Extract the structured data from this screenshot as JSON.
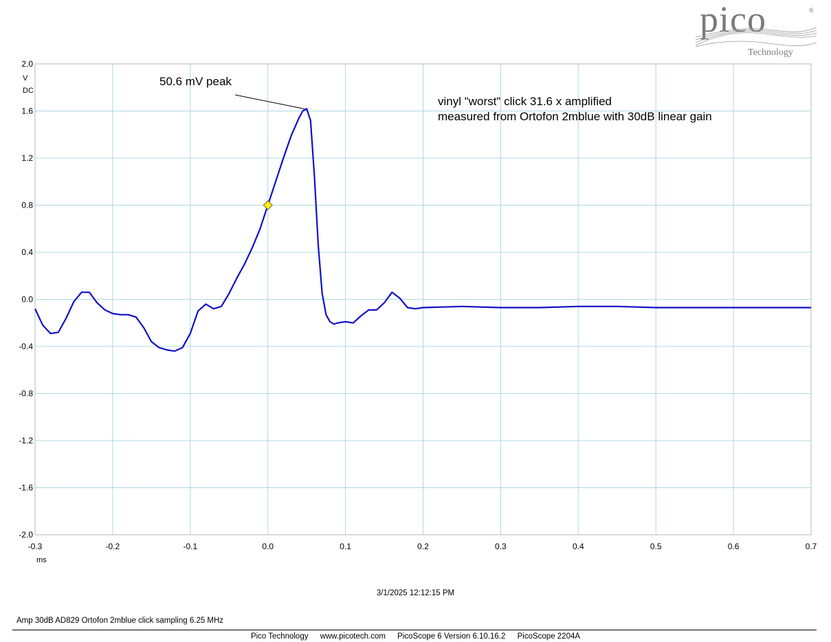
{
  "app": {
    "brand": "pico",
    "brand_sub": "Technology",
    "registered_mark": "®"
  },
  "colors": {
    "trace": "#1010c8",
    "grid": "#add8e6",
    "marker_fill": "#ffee22",
    "marker_stroke": "#707000",
    "logo": "#7a7a7a"
  },
  "chart_data": {
    "type": "line",
    "title": "",
    "xlabel": "ms",
    "ylabel_unit": "V",
    "ylabel_coupling": "DC",
    "xlim": [
      -0.3,
      0.7
    ],
    "ylim": [
      -2.0,
      2.0
    ],
    "grid": true,
    "x_ticks": [
      "-0.3",
      "-0.2",
      "-0.1",
      "0.0",
      "0.1",
      "0.2",
      "0.3",
      "0.4",
      "0.5",
      "0.6",
      "0.7"
    ],
    "y_ticks": [
      "2.0",
      "1.6",
      "1.2",
      "0.8",
      "0.4",
      "0.0",
      "-0.4",
      "-0.8",
      "-1.2",
      "-1.6",
      "-2.0"
    ],
    "series": [
      {
        "x": [
          -0.3,
          -0.29,
          -0.28,
          -0.27,
          -0.26,
          -0.25,
          -0.24,
          -0.23,
          -0.22,
          -0.21,
          -0.2,
          -0.19,
          -0.18,
          -0.17,
          -0.16,
          -0.15,
          -0.14,
          -0.13,
          -0.12,
          -0.11,
          -0.1,
          -0.09,
          -0.08,
          -0.07,
          -0.06,
          -0.05,
          -0.04,
          -0.03,
          -0.02,
          -0.01,
          0.0,
          0.01,
          0.02,
          0.03,
          0.04,
          0.045,
          0.05,
          0.055,
          0.06,
          0.065,
          0.07,
          0.075,
          0.08,
          0.085,
          0.09,
          0.1,
          0.11,
          0.12,
          0.13,
          0.14,
          0.15,
          0.16,
          0.17,
          0.18,
          0.19,
          0.2,
          0.25,
          0.3,
          0.35,
          0.4,
          0.45,
          0.5,
          0.55,
          0.6,
          0.65,
          0.7
        ],
        "y": [
          -0.08,
          -0.22,
          -0.29,
          -0.28,
          -0.16,
          -0.02,
          0.06,
          0.06,
          -0.03,
          -0.09,
          -0.12,
          -0.13,
          -0.13,
          -0.15,
          -0.24,
          -0.36,
          -0.41,
          -0.43,
          -0.44,
          -0.41,
          -0.29,
          -0.1,
          -0.04,
          -0.08,
          -0.06,
          0.05,
          0.18,
          0.3,
          0.44,
          0.6,
          0.8,
          1.0,
          1.2,
          1.39,
          1.54,
          1.6,
          1.62,
          1.52,
          1.05,
          0.45,
          0.05,
          -0.13,
          -0.19,
          -0.21,
          -0.2,
          -0.19,
          -0.2,
          -0.14,
          -0.09,
          -0.09,
          -0.03,
          0.06,
          0.01,
          -0.07,
          -0.08,
          -0.07,
          -0.06,
          -0.07,
          -0.07,
          -0.06,
          -0.06,
          -0.07,
          -0.07,
          -0.07,
          -0.07,
          -0.07
        ]
      }
    ],
    "marker": {
      "x": 0.0,
      "y": 0.8
    },
    "annotations": {
      "peak_label": "50.6 mV peak",
      "peak_point": {
        "x": 0.047,
        "y": 1.63
      },
      "note_line1": "vinyl \"worst\" click 31.6 x amplified",
      "note_line2": "measured from Ortofon 2mblue with 30dB linear gain"
    }
  },
  "footer": {
    "timestamp": "3/1/2025 12:12:15 PM",
    "caption": "Amp 30dB AD829 Ortofon 2mblue click sampling 6.25 MHz",
    "company": "Pico Technology",
    "website": "www.picotech.com",
    "software": "PicoScope 6 Version 6.10.16.2",
    "device": "PicoScope 2204A"
  }
}
